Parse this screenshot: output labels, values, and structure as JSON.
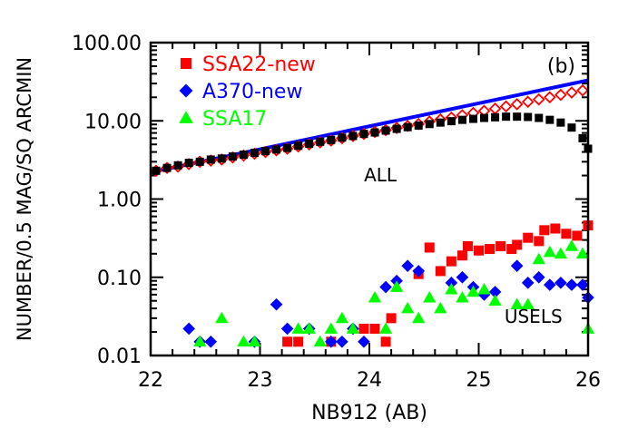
{
  "chart_data": {
    "type": "scatter",
    "panel_label": "(b)",
    "xlabel": "NB912 (AB)",
    "ylabel": "NUMBER/0.5 MAG/SQ ARCMIN",
    "xlim": [
      22,
      26
    ],
    "ylim": [
      0.01,
      100
    ],
    "yscale": "log",
    "xticks": [
      {
        "value": 22,
        "label": "22"
      },
      {
        "value": 23,
        "label": "23"
      },
      {
        "value": 24,
        "label": "24"
      },
      {
        "value": 25,
        "label": "25"
      },
      {
        "value": 26,
        "label": "26"
      }
    ],
    "yticks": [
      {
        "value": 0.01,
        "label": "0.01"
      },
      {
        "value": 0.1,
        "label": "0.10"
      },
      {
        "value": 1,
        "label": "1.00"
      },
      {
        "value": 10,
        "label": "10.00"
      },
      {
        "value": 100,
        "label": "100.00"
      }
    ],
    "legend_position": "top-left",
    "annotations": [
      "ALL",
      "USELS"
    ],
    "series": [
      {
        "name": "SSA22-new",
        "color": "#ff0000",
        "marker": "square",
        "filled": true,
        "group": "USELS",
        "points": [
          [
            23.25,
            0.015
          ],
          [
            23.35,
            0.015
          ],
          [
            23.65,
            0.015
          ],
          [
            23.95,
            0.022
          ],
          [
            24.05,
            0.022
          ],
          [
            24.15,
            0.015
          ],
          [
            24.2,
            0.03
          ],
          [
            24.45,
            0.11
          ],
          [
            24.55,
            0.24
          ],
          [
            24.65,
            0.12
          ],
          [
            24.75,
            0.16
          ],
          [
            24.85,
            0.19
          ],
          [
            24.9,
            0.25
          ],
          [
            25.0,
            0.22
          ],
          [
            25.1,
            0.23
          ],
          [
            25.2,
            0.25
          ],
          [
            25.3,
            0.23
          ],
          [
            25.35,
            0.26
          ],
          [
            25.45,
            0.32
          ],
          [
            25.55,
            0.29
          ],
          [
            25.6,
            0.4
          ],
          [
            25.7,
            0.42
          ],
          [
            25.8,
            0.36
          ],
          [
            25.9,
            0.34
          ],
          [
            26.0,
            0.46
          ]
        ]
      },
      {
        "name": "A370-new",
        "color": "#0000ff",
        "marker": "diamond",
        "filled": true,
        "group": "USELS",
        "points": [
          [
            22.35,
            0.022
          ],
          [
            22.45,
            0.015
          ],
          [
            22.55,
            0.015
          ],
          [
            22.95,
            0.015
          ],
          [
            23.15,
            0.045
          ],
          [
            23.25,
            0.022
          ],
          [
            23.45,
            0.022
          ],
          [
            23.65,
            0.015
          ],
          [
            23.75,
            0.015
          ],
          [
            23.85,
            0.022
          ],
          [
            23.95,
            0.015
          ],
          [
            24.15,
            0.075
          ],
          [
            24.25,
            0.09
          ],
          [
            24.35,
            0.14
          ],
          [
            24.45,
            0.12
          ],
          [
            24.75,
            0.085
          ],
          [
            24.85,
            0.1
          ],
          [
            24.95,
            0.075
          ],
          [
            25.05,
            0.06
          ],
          [
            25.15,
            0.065
          ],
          [
            25.35,
            0.14
          ],
          [
            25.45,
            0.085
          ],
          [
            25.55,
            0.1
          ],
          [
            25.65,
            0.08
          ],
          [
            25.75,
            0.085
          ],
          [
            25.85,
            0.08
          ],
          [
            25.95,
            0.08
          ],
          [
            26.0,
            0.055
          ]
        ]
      },
      {
        "name": "SSA17",
        "color": "#00ff00",
        "marker": "triangle",
        "filled": true,
        "group": "USELS",
        "points": [
          [
            22.45,
            0.015
          ],
          [
            22.65,
            0.03
          ],
          [
            22.85,
            0.015
          ],
          [
            22.95,
            0.015
          ],
          [
            23.35,
            0.022
          ],
          [
            23.45,
            0.022
          ],
          [
            23.55,
            0.015
          ],
          [
            23.65,
            0.022
          ],
          [
            23.75,
            0.03
          ],
          [
            23.85,
            0.022
          ],
          [
            24.05,
            0.055
          ],
          [
            24.15,
            0.022
          ],
          [
            24.25,
            0.075
          ],
          [
            24.35,
            0.04
          ],
          [
            24.45,
            0.03
          ],
          [
            24.55,
            0.055
          ],
          [
            24.65,
            0.04
          ],
          [
            24.75,
            0.07
          ],
          [
            24.85,
            0.055
          ],
          [
            24.95,
            0.065
          ],
          [
            25.05,
            0.07
          ],
          [
            25.15,
            0.05
          ],
          [
            25.35,
            0.045
          ],
          [
            25.45,
            0.045
          ],
          [
            25.55,
            0.17
          ],
          [
            25.65,
            0.21
          ],
          [
            25.75,
            0.2
          ],
          [
            25.85,
            0.25
          ],
          [
            25.95,
            0.2
          ],
          [
            26.0,
            0.022
          ]
        ]
      },
      {
        "name": "",
        "color": "#ff0000",
        "marker": "diamond",
        "filled": false,
        "group": "ALL",
        "points": [
          [
            22.05,
            2.3
          ],
          [
            22.15,
            2.5
          ],
          [
            22.25,
            2.6
          ],
          [
            22.35,
            2.8
          ],
          [
            22.45,
            3.0
          ],
          [
            22.55,
            3.1
          ],
          [
            22.65,
            3.2
          ],
          [
            22.75,
            3.4
          ],
          [
            22.85,
            3.6
          ],
          [
            22.95,
            3.8
          ],
          [
            23.05,
            4.0
          ],
          [
            23.15,
            4.2
          ],
          [
            23.25,
            4.4
          ],
          [
            23.35,
            4.7
          ],
          [
            23.45,
            5.0
          ],
          [
            23.55,
            5.3
          ],
          [
            23.65,
            5.6
          ],
          [
            23.75,
            6.0
          ],
          [
            23.85,
            6.4
          ],
          [
            23.95,
            6.8
          ],
          [
            24.05,
            7.2
          ],
          [
            24.15,
            7.6
          ],
          [
            24.25,
            8.1
          ],
          [
            24.35,
            8.6
          ],
          [
            24.45,
            9.1
          ],
          [
            24.55,
            9.8
          ],
          [
            24.65,
            10.4
          ],
          [
            24.75,
            11.0
          ],
          [
            24.85,
            11.8
          ],
          [
            24.95,
            12.6
          ],
          [
            25.05,
            13.4
          ],
          [
            25.15,
            14.3
          ],
          [
            25.25,
            15.3
          ],
          [
            25.35,
            16.3
          ],
          [
            25.45,
            17.5
          ],
          [
            25.55,
            18.8
          ],
          [
            25.65,
            20.0
          ],
          [
            25.75,
            21.5
          ],
          [
            25.85,
            23.0
          ],
          [
            25.95,
            24.5
          ]
        ]
      },
      {
        "name": "",
        "color": "#000000",
        "marker": "square",
        "filled": true,
        "group": "ALL",
        "points": [
          [
            22.05,
            2.3
          ],
          [
            22.15,
            2.5
          ],
          [
            22.25,
            2.7
          ],
          [
            22.35,
            2.9
          ],
          [
            22.45,
            3.0
          ],
          [
            22.55,
            3.2
          ],
          [
            22.65,
            3.3
          ],
          [
            22.75,
            3.5
          ],
          [
            22.85,
            3.7
          ],
          [
            22.95,
            3.9
          ],
          [
            23.05,
            4.1
          ],
          [
            23.15,
            4.3
          ],
          [
            23.25,
            4.5
          ],
          [
            23.35,
            4.8
          ],
          [
            23.45,
            5.1
          ],
          [
            23.55,
            5.4
          ],
          [
            23.65,
            5.7
          ],
          [
            23.75,
            6.1
          ],
          [
            23.85,
            6.4
          ],
          [
            23.95,
            6.8
          ],
          [
            24.05,
            7.1
          ],
          [
            24.15,
            7.5
          ],
          [
            24.25,
            7.9
          ],
          [
            24.35,
            8.3
          ],
          [
            24.45,
            8.7
          ],
          [
            24.55,
            9.1
          ],
          [
            24.65,
            9.5
          ],
          [
            24.75,
            9.9
          ],
          [
            24.85,
            10.3
          ],
          [
            24.95,
            10.6
          ],
          [
            25.05,
            10.9
          ],
          [
            25.15,
            11.1
          ],
          [
            25.25,
            11.3
          ],
          [
            25.35,
            11.3
          ],
          [
            25.45,
            11.2
          ],
          [
            25.55,
            10.9
          ],
          [
            25.65,
            10.3
          ],
          [
            25.75,
            9.5
          ],
          [
            25.85,
            8.2
          ],
          [
            25.95,
            6.0
          ],
          [
            26.0,
            4.4
          ]
        ]
      }
    ],
    "fit_line": {
      "color": "#0000ff",
      "points": [
        [
          22,
          2.2
        ],
        [
          26,
          33
        ]
      ]
    }
  }
}
